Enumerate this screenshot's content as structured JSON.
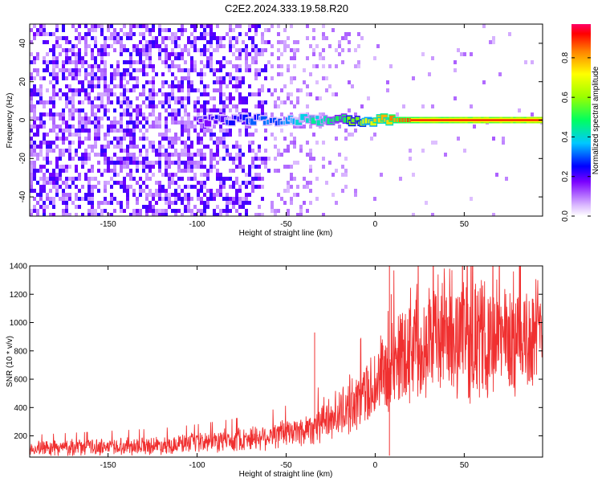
{
  "title": "C2E2.2024.333.19.58.R20",
  "chart_data": [
    {
      "type": "heatmap",
      "xlabel": "Height of straight line (km)",
      "ylabel": "Frequency (Hz)",
      "xlim": [
        -194,
        94
      ],
      "ylim": [
        -50,
        50
      ],
      "xticks": [
        -150,
        -100,
        -50,
        0,
        50
      ],
      "yticks": [
        -40,
        -20,
        0,
        20,
        40
      ],
      "colorbar": {
        "label": "Normalized spectral amplitude",
        "range": [
          0,
          0.97
        ],
        "ticks": [
          0.0,
          0.2,
          0.4,
          0.6,
          0.8
        ]
      },
      "ridge": {
        "frequency_hz": 0,
        "description_points": [
          {
            "x": -100,
            "amp": 0.2
          },
          {
            "x": -60,
            "amp": 0.3
          },
          {
            "x": -40,
            "amp": 0.4
          },
          {
            "x": -20,
            "amp": 0.5
          },
          {
            "x": 0,
            "amp": 0.75
          },
          {
            "x": 20,
            "amp": 0.9
          },
          {
            "x": 50,
            "amp": 0.95
          },
          {
            "x": 94,
            "amp": 0.95
          }
        ]
      }
    },
    {
      "type": "line",
      "xlabel": "Height of straight line (km)",
      "ylabel": "SNR (10 * v/v)",
      "xlim": [
        -194,
        94
      ],
      "ylim": [
        50,
        1400
      ],
      "xticks": [
        -150,
        -100,
        -50,
        0,
        50
      ],
      "yticks": [
        200,
        400,
        600,
        800,
        1000,
        1200,
        1400
      ],
      "color": "#f03030",
      "series": [
        {
          "x": [
            -194,
            -150,
            -120,
            -100,
            -80,
            -60,
            -40,
            -30,
            -20,
            -10,
            0,
            5,
            8,
            10,
            15,
            20,
            30,
            40,
            50,
            60,
            70,
            80,
            94
          ],
          "y": [
            110,
            125,
            135,
            150,
            170,
            200,
            240,
            300,
            360,
            450,
            560,
            650,
            550,
            720,
            800,
            860,
            900,
            930,
            900,
            880,
            880,
            890,
            900
          ]
        }
      ]
    }
  ]
}
